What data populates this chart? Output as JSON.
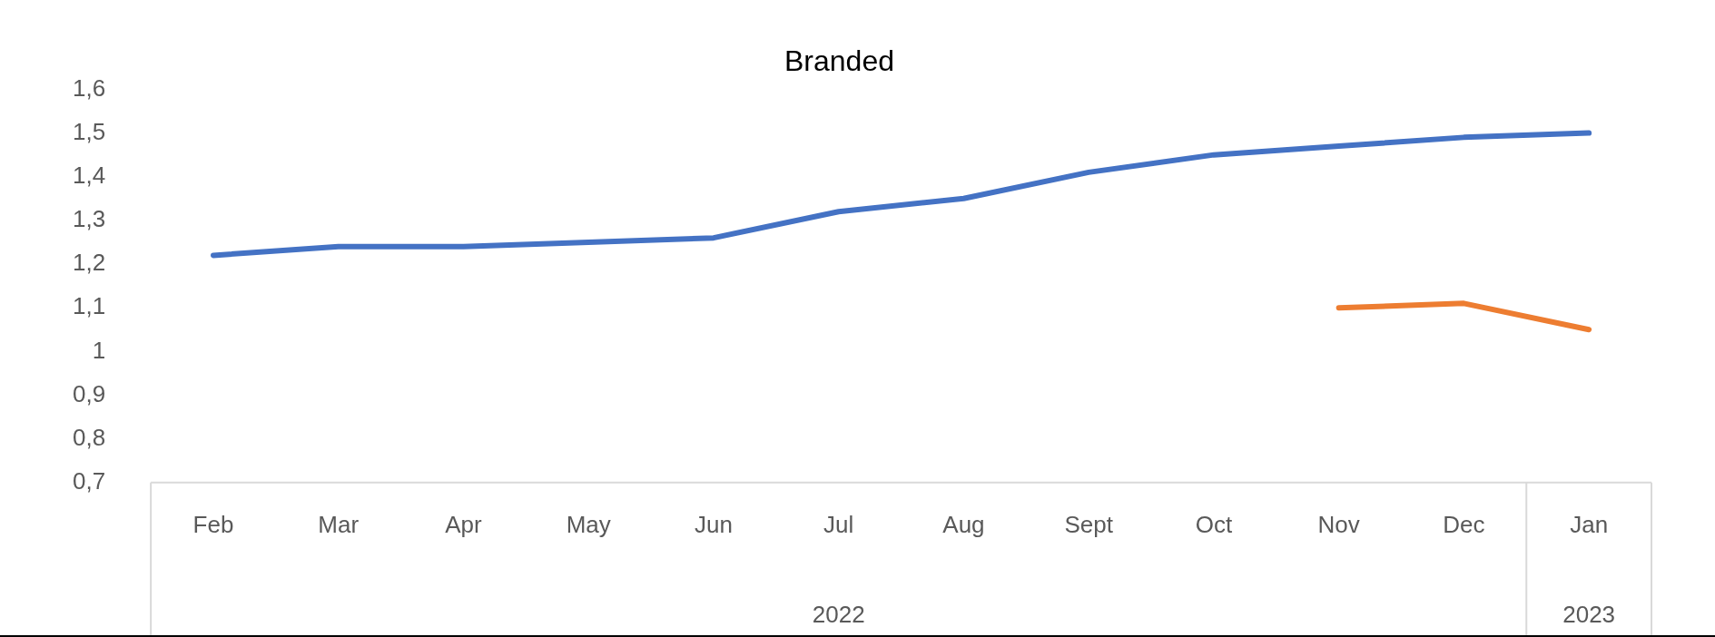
{
  "chart_data": {
    "type": "line",
    "title": "Branded",
    "categories": [
      "Feb",
      "Mar",
      "Apr",
      "May",
      "Jun",
      "Jul",
      "Aug",
      "Sept",
      "Oct",
      "Nov",
      "Dec",
      "Jan"
    ],
    "series": [
      {
        "color": "#4472c4",
        "values": [
          1.22,
          1.24,
          1.24,
          1.25,
          1.26,
          1.32,
          1.35,
          1.41,
          1.45,
          1.47,
          1.49,
          1.5
        ]
      },
      {
        "color": "#ed7d31",
        "values": [
          null,
          null,
          null,
          null,
          null,
          null,
          null,
          null,
          null,
          1.1,
          1.11,
          1.05
        ]
      }
    ],
    "ylim": [
      0.7,
      1.6
    ],
    "yticks": [
      {
        "value": 0.7,
        "label": "0,7"
      },
      {
        "value": 0.8,
        "label": "0,8"
      },
      {
        "value": 0.9,
        "label": "0,9"
      },
      {
        "value": 1,
        "label": "1"
      },
      {
        "value": 1.1,
        "label": "1,1"
      },
      {
        "value": 1.2,
        "label": "1,2"
      },
      {
        "value": 1.3,
        "label": "1,3"
      },
      {
        "value": 1.4,
        "label": "1,4"
      },
      {
        "value": 1.5,
        "label": "1,5"
      },
      {
        "value": 1.6,
        "label": "1,6"
      }
    ],
    "annotations": [
      "2022",
      "2023"
    ],
    "grid": false,
    "legend": false,
    "marker": "none",
    "line_style": "solid"
  }
}
